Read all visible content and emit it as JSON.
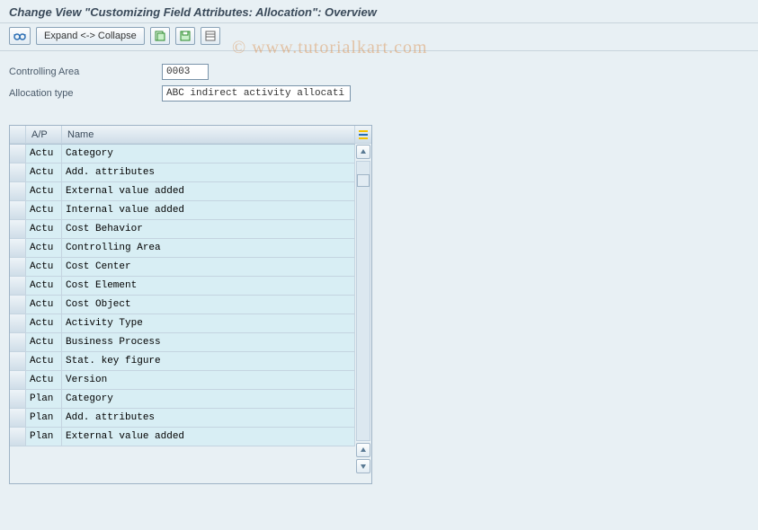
{
  "title": "Change View \"Customizing Field Attributes: Allocation\": Overview",
  "toolbar": {
    "expand_collapse": "Expand <-> Collapse"
  },
  "fields": {
    "controlling_area_label": "Controlling Area",
    "controlling_area_value": "0003",
    "allocation_type_label": "Allocation type",
    "allocation_type_value": "ABC indirect activity allocati"
  },
  "table": {
    "col_ap": "A/P",
    "col_name": "Name",
    "rows": [
      {
        "ap": "Actu",
        "name": "Category"
      },
      {
        "ap": "Actu",
        "name": "Add. attributes"
      },
      {
        "ap": "Actu",
        "name": "External value added"
      },
      {
        "ap": "Actu",
        "name": "Internal value added"
      },
      {
        "ap": "Actu",
        "name": "Cost Behavior"
      },
      {
        "ap": "Actu",
        "name": "Controlling Area"
      },
      {
        "ap": "Actu",
        "name": "Cost Center"
      },
      {
        "ap": "Actu",
        "name": "Cost Element"
      },
      {
        "ap": "Actu",
        "name": "Cost Object"
      },
      {
        "ap": "Actu",
        "name": "Activity Type"
      },
      {
        "ap": "Actu",
        "name": "Business Process"
      },
      {
        "ap": "Actu",
        "name": "Stat. key figure"
      },
      {
        "ap": "Actu",
        "name": "Version"
      },
      {
        "ap": "Plan",
        "name": "Category"
      },
      {
        "ap": "Plan",
        "name": "Add. attributes"
      },
      {
        "ap": "Plan",
        "name": "External value added"
      }
    ]
  },
  "watermark": "© www.tutorialkart.com",
  "colors": {
    "background": "#e8f0f4",
    "cell_bg": "#d8eef4",
    "header_grad_top": "#eef4f8",
    "header_grad_bot": "#cfdde8",
    "border": "#9fb4c6"
  }
}
